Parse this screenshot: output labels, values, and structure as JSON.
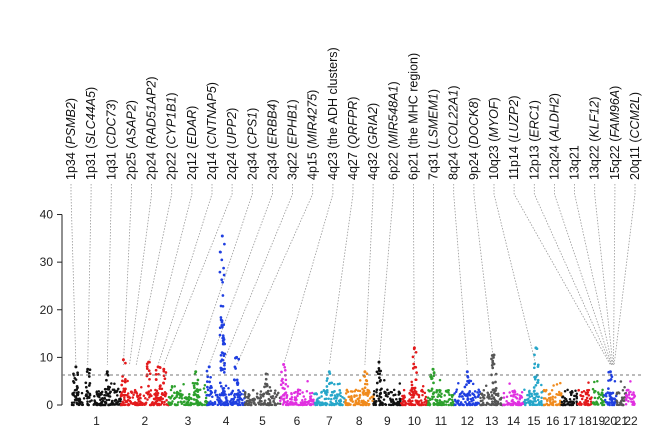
{
  "chart_data": {
    "type": "scatter",
    "subtype": "manhattan",
    "title": "",
    "xlabel": "",
    "ylabel": "",
    "ylim": [
      0,
      42
    ],
    "yticks": [
      0,
      10,
      20,
      30,
      40
    ],
    "threshold": 6.3,
    "threshold_style": "dashed",
    "grid": false,
    "chromosomes": [
      {
        "label": "1",
        "color": "#111111"
      },
      {
        "label": "2",
        "color": "#e31a1c"
      },
      {
        "label": "3",
        "color": "#2ca02c"
      },
      {
        "label": "4",
        "color": "#1f3fe0"
      },
      {
        "label": "5",
        "color": "#555555"
      },
      {
        "label": "6",
        "color": "#e030e0"
      },
      {
        "label": "7",
        "color": "#26a6c9"
      },
      {
        "label": "8",
        "color": "#f08a1c"
      },
      {
        "label": "9",
        "color": "#111111"
      },
      {
        "label": "10",
        "color": "#e31a1c"
      },
      {
        "label": "11",
        "color": "#2ca02c"
      },
      {
        "label": "12",
        "color": "#1f3fe0"
      },
      {
        "label": "13",
        "color": "#555555"
      },
      {
        "label": "14",
        "color": "#e030e0"
      },
      {
        "label": "15",
        "color": "#26a6c9"
      },
      {
        "label": "16",
        "color": "#f08a1c"
      },
      {
        "label": "17",
        "color": "#111111"
      },
      {
        "label": "18",
        "color": "#e31a1c"
      },
      {
        "label": "19",
        "color": "#2ca02c"
      },
      {
        "label": "20",
        "color": "#1f3fe0"
      },
      {
        "label": "21",
        "color": "#555555"
      },
      {
        "label": "22",
        "color": "#e030e0"
      }
    ],
    "peaks": [
      {
        "chr": "1",
        "pos": 0.08,
        "y": 8
      },
      {
        "chr": "1",
        "pos": 0.32,
        "y": 7.5
      },
      {
        "chr": "1",
        "pos": 0.72,
        "y": 7
      },
      {
        "chr": "2",
        "pos": 0.05,
        "y": 9.5
      },
      {
        "chr": "2",
        "pos": 0.58,
        "y": 9
      },
      {
        "chr": "2",
        "pos": 0.78,
        "y": 8
      },
      {
        "chr": "2",
        "pos": 0.9,
        "y": 7.5
      },
      {
        "chr": "3",
        "pos": 0.7,
        "y": 7
      },
      {
        "chr": "4",
        "pos": 0.05,
        "y": 8
      },
      {
        "chr": "4",
        "pos": 0.4,
        "y": 35.5
      },
      {
        "chr": "4",
        "pos": 0.78,
        "y": 10
      },
      {
        "chr": "5",
        "pos": 0.6,
        "y": 6.5
      },
      {
        "chr": "6",
        "pos": 0.1,
        "y": 8.5
      },
      {
        "chr": "7",
        "pos": 0.5,
        "y": 7
      },
      {
        "chr": "8",
        "pos": 0.7,
        "y": 7
      },
      {
        "chr": "9",
        "pos": 0.2,
        "y": 9
      },
      {
        "chr": "10",
        "pos": 0.5,
        "y": 12
      },
      {
        "chr": "11",
        "pos": 0.2,
        "y": 7.5
      },
      {
        "chr": "12",
        "pos": 0.5,
        "y": 7
      },
      {
        "chr": "13",
        "pos": 0.6,
        "y": 10.5
      },
      {
        "chr": "15",
        "pos": 0.6,
        "y": 12
      },
      {
        "chr": "20",
        "pos": 0.5,
        "y": 7
      }
    ],
    "annotations": [
      {
        "locus": "1p34",
        "gene": "PSMB2",
        "chr": "1",
        "pos": 0.08
      },
      {
        "locus": "1p31",
        "gene": "SLC44A5",
        "chr": "1",
        "pos": 0.32
      },
      {
        "locus": "1q31",
        "gene": "CDC73",
        "chr": "1",
        "pos": 0.72
      },
      {
        "locus": "2p25",
        "gene": "ASAP2",
        "chr": "2",
        "pos": 0.05
      },
      {
        "locus": "2p24",
        "gene": "RAD51AP2",
        "chr": "2",
        "pos": 0.18
      },
      {
        "locus": "2p22",
        "gene": "CYP1B1",
        "chr": "2",
        "pos": 0.32
      },
      {
        "locus": "2q12",
        "gene": "EDAR",
        "chr": "2",
        "pos": 0.58
      },
      {
        "locus": "2q14",
        "gene": "CNTNAP5",
        "chr": "2",
        "pos": 0.78
      },
      {
        "locus": "2q24",
        "gene": "UPP2",
        "chr": "2",
        "pos": 0.9
      },
      {
        "locus": "2q34",
        "gene": "CPS1",
        "chr": "3",
        "pos": 0.7
      },
      {
        "locus": "2q34",
        "gene": "ERBB4",
        "chr": "4",
        "pos": 0.05
      },
      {
        "locus": "3q22",
        "gene": "EPHB1",
        "chr": "4",
        "pos": 0.4
      },
      {
        "locus": "4p15",
        "gene": "MIR4275",
        "chr": "4",
        "pos": 0.78
      },
      {
        "locus": "4q23",
        "text": "(the ADH clusters)",
        "chr": "6",
        "pos": 0.1
      },
      {
        "locus": "4q27",
        "gene": "QRFPR",
        "chr": "7",
        "pos": 0.5
      },
      {
        "locus": "4q32",
        "gene": "GRIA2",
        "chr": "8",
        "pos": 0.7
      },
      {
        "locus": "6p22",
        "gene": "MIR548A1",
        "chr": "9",
        "pos": 0.2
      },
      {
        "locus": "6p21",
        "text": "(the MHC region)",
        "chr": "10",
        "pos": 0.5
      },
      {
        "locus": "7q31",
        "gene": "LSMEM1",
        "chr": "11",
        "pos": 0.2
      },
      {
        "locus": "8q24",
        "gene": "COL22A1",
        "chr": "12",
        "pos": 0.5
      },
      {
        "locus": "9p24",
        "gene": "DOCK8",
        "chr": "13",
        "pos": 0.6
      },
      {
        "locus": "10q23",
        "gene": "MYOF",
        "chr": "15",
        "pos": 0.6
      },
      {
        "locus": "11p14",
        "gene": "LUZP2",
        "chr": "20",
        "pos": 0.5
      },
      {
        "locus": "12p13",
        "gene": "ERC1",
        "chr": "20",
        "pos": 0.55
      },
      {
        "locus": "12q24",
        "gene": "ALDH2",
        "chr": "20",
        "pos": 0.6
      },
      {
        "locus": "13q21",
        "gene": "",
        "chr": "20",
        "pos": 0.65
      },
      {
        "locus": "13q22",
        "gene": "KLF12",
        "chr": "20",
        "pos": 0.7
      },
      {
        "locus": "15q22",
        "gene": "FAM96A",
        "chr": "20",
        "pos": 0.75
      },
      {
        "locus": "20q11",
        "gene": "CCM2L",
        "chr": "20",
        "pos": 0.8
      }
    ]
  }
}
